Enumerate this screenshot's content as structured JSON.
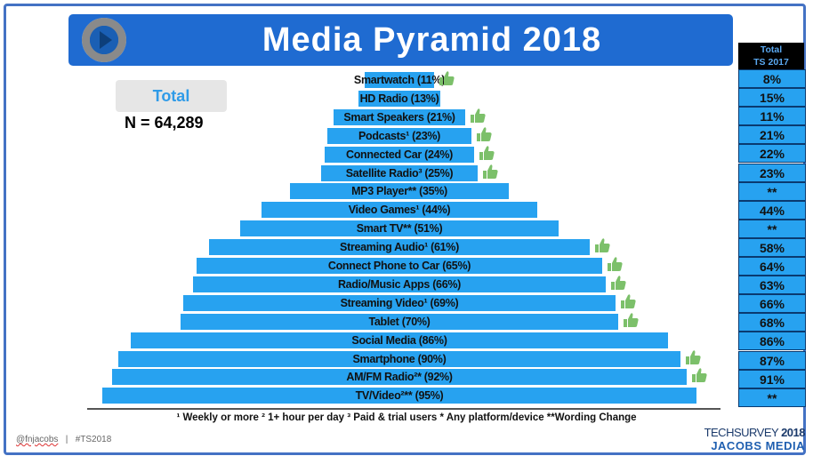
{
  "header": {
    "title": "Media Pyramid 2018",
    "logo": "play-button-logo"
  },
  "sample": {
    "total_label": "Total",
    "n_label": "N = 64,289"
  },
  "colors": {
    "banner": "#1f6bd1",
    "bar": "#27a2f0",
    "thumb": "#7cc06a"
  },
  "ts2017_header": {
    "line1": "Total",
    "line2": "TS 2017"
  },
  "rows": [
    {
      "label": "Smartwatch (11%)",
      "value": 11,
      "thumbs_up": true,
      "ts2017": "8%"
    },
    {
      "label": "HD Radio (13%)",
      "value": 13,
      "thumbs_up": false,
      "ts2017": "15%"
    },
    {
      "label": "Smart Speakers (21%)",
      "value": 21,
      "thumbs_up": true,
      "ts2017": "11%"
    },
    {
      "label": "Podcasts¹ (23%)",
      "value": 23,
      "thumbs_up": true,
      "ts2017": "21%"
    },
    {
      "label": "Connected Car (24%)",
      "value": 24,
      "thumbs_up": true,
      "ts2017": "22%"
    },
    {
      "label": "Satellite Radio³ (25%)",
      "value": 25,
      "thumbs_up": true,
      "ts2017": "23%"
    },
    {
      "label": "MP3 Player** (35%)",
      "value": 35,
      "thumbs_up": false,
      "ts2017": "**"
    },
    {
      "label": "Video Games¹ (44%)",
      "value": 44,
      "thumbs_up": false,
      "ts2017": "44%"
    },
    {
      "label": "Smart TV** (51%)",
      "value": 51,
      "thumbs_up": false,
      "ts2017": "**"
    },
    {
      "label": "Streaming Audio¹ (61%)",
      "value": 61,
      "thumbs_up": true,
      "ts2017": "58%"
    },
    {
      "label": "Connect Phone to Car (65%)",
      "value": 65,
      "thumbs_up": true,
      "ts2017": "64%"
    },
    {
      "label": "Radio/Music Apps (66%)",
      "value": 66,
      "thumbs_up": true,
      "ts2017": "63%"
    },
    {
      "label": "Streaming Video¹ (69%)",
      "value": 69,
      "thumbs_up": true,
      "ts2017": "66%"
    },
    {
      "label": "Tablet (70%)",
      "value": 70,
      "thumbs_up": true,
      "ts2017": "68%"
    },
    {
      "label": "Social Media (86%)",
      "value": 86,
      "thumbs_up": false,
      "ts2017": "86%"
    },
    {
      "label": "Smartphone (90%)",
      "value": 90,
      "thumbs_up": true,
      "ts2017": "87%"
    },
    {
      "label": "AM/FM Radio²* (92%)",
      "value": 92,
      "thumbs_up": true,
      "ts2017": "91%"
    },
    {
      "label": "TV/Video²** (95%)",
      "value": 95,
      "thumbs_up": false,
      "ts2017": "**"
    }
  ],
  "footnote": "¹ Weekly or more  ² 1+ hour per day  ³ Paid & trial users  * Any platform/device **Wording Change",
  "social": {
    "handle": "@fnjacobs",
    "separator": "|",
    "hashtag": "#TS2018"
  },
  "brand": {
    "line1a": "TECHSURVEY",
    "line1b": "2018",
    "line2": "JACOBS MEDIA"
  }
}
